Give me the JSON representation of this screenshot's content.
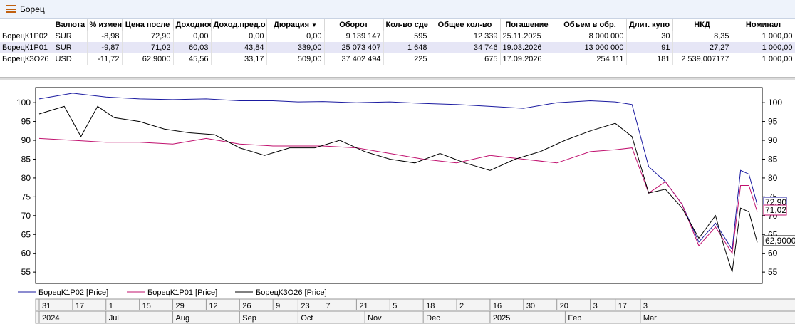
{
  "window": {
    "title": "Борец"
  },
  "table": {
    "columns": [
      "",
      "Валюта",
      "% измен",
      "Цена после",
      "Доходнос",
      "Доход.пред.о",
      "Дюрация",
      "Оборот",
      "Кол-во сде",
      "Общее кол-во",
      "Погашение",
      "Объем в обр.",
      "Длит. купо",
      "НКД",
      "Номинал"
    ],
    "rows": [
      [
        "БорецК1Р02",
        "SUR",
        "-8,98",
        "72,90",
        "0,00",
        "0,00",
        "0,00",
        "9 139 147",
        "595",
        "12 339",
        "25.11.2025",
        "8 000 000",
        "30",
        "8,35",
        "1 000,00"
      ],
      [
        "БорецК1Р01",
        "SUR",
        "-9,87",
        "71,02",
        "60,03",
        "43,84",
        "339,00",
        "25 073 407",
        "1 648",
        "34 746",
        "19.03.2026",
        "13 000 000",
        "91",
        "27,27",
        "1 000,00"
      ],
      [
        "БорецКЗО26",
        "USD",
        "-11,72",
        "62,9000",
        "45,56",
        "33,17",
        "509,00",
        "37 402 494",
        "225",
        "675",
        "17.09.2026",
        "254 111",
        "181",
        "2 539,007177",
        "1 000,00"
      ]
    ]
  },
  "chart_data": {
    "type": "line",
    "ylim": [
      52,
      104
    ],
    "yticks": [
      "100",
      "95",
      "90",
      "85",
      "80",
      "75",
      "70",
      "65",
      "60",
      "55"
    ],
    "series": [
      {
        "name": "БорецК1Р02 [Price]",
        "color": "#1a1aa0",
        "last_label": "72,90",
        "x": [
          0,
          4,
          8,
          12,
          16,
          20,
          24,
          28,
          31,
          34,
          38,
          42,
          46,
          50,
          54,
          58,
          62,
          66,
          69,
          71,
          73,
          75,
          77,
          79,
          81,
          83,
          84,
          85,
          86
        ],
        "values": [
          101,
          102.5,
          101.5,
          101,
          100.8,
          101,
          100.5,
          100.5,
          100.2,
          100.3,
          100,
          100.2,
          99.8,
          99.5,
          99,
          98.5,
          100,
          100.5,
          100.2,
          99.5,
          83,
          79,
          73,
          63,
          68,
          61,
          82,
          81,
          72.9
        ]
      },
      {
        "name": "БорецК1Р01 [Price]",
        "color": "#c0106e",
        "last_label": "71,02",
        "x": [
          0,
          4,
          8,
          12,
          16,
          20,
          24,
          28,
          31,
          34,
          38,
          42,
          46,
          50,
          54,
          58,
          62,
          66,
          69,
          71,
          73,
          75,
          77,
          79,
          81,
          83,
          84,
          85,
          86
        ],
        "values": [
          90.5,
          90,
          89.5,
          89.5,
          89,
          90.5,
          89,
          88.5,
          88.5,
          88.5,
          88,
          86.5,
          85,
          84,
          86,
          85,
          84,
          87,
          87.5,
          88,
          76,
          79,
          73,
          62,
          67,
          60,
          78,
          78,
          71.02
        ]
      },
      {
        "name": "БорецКЗО26 [Price]",
        "color": "#000000",
        "last_label": "62,9000",
        "x": [
          0,
          3,
          5,
          7,
          9,
          12,
          15,
          18,
          21,
          24,
          27,
          30,
          33,
          36,
          39,
          42,
          45,
          48,
          51,
          54,
          57,
          60,
          63,
          66,
          69,
          71,
          73,
          75,
          77,
          79,
          81,
          82,
          83,
          84,
          85,
          86
        ],
        "values": [
          97,
          99,
          91,
          99,
          96,
          95,
          93,
          92,
          91.5,
          88,
          86,
          88,
          88,
          90,
          87,
          85,
          84,
          86.5,
          84,
          82,
          85,
          87,
          90,
          92.5,
          94.5,
          91,
          76,
          77,
          72,
          64,
          70,
          62,
          55,
          72,
          71,
          62.9
        ]
      }
    ],
    "x_ticks": {
      "days": [
        {
          "x": 0,
          "label": "31"
        },
        {
          "x": 4,
          "label": "17"
        },
        {
          "x": 8,
          "label": "1"
        },
        {
          "x": 12,
          "label": "15"
        },
        {
          "x": 16,
          "label": "29"
        },
        {
          "x": 20,
          "label": "12"
        },
        {
          "x": 24,
          "label": "26"
        },
        {
          "x": 28,
          "label": "9"
        },
        {
          "x": 31,
          "label": "23"
        },
        {
          "x": 34,
          "label": "7"
        },
        {
          "x": 38,
          "label": "21"
        },
        {
          "x": 42,
          "label": "5"
        },
        {
          "x": 46,
          "label": "18"
        },
        {
          "x": 50,
          "label": "2"
        },
        {
          "x": 54,
          "label": "16"
        },
        {
          "x": 58,
          "label": "30"
        },
        {
          "x": 62,
          "label": "20"
        },
        {
          "x": 66,
          "label": "3"
        },
        {
          "x": 69,
          "label": "17"
        },
        {
          "x": 72,
          "label": "3"
        }
      ],
      "periods": [
        {
          "x": 0,
          "label": "2024"
        },
        {
          "x": 8,
          "label": "Jul"
        },
        {
          "x": 16,
          "label": "Aug"
        },
        {
          "x": 24,
          "label": "Sep"
        },
        {
          "x": 31,
          "label": "Oct"
        },
        {
          "x": 39,
          "label": "Nov"
        },
        {
          "x": 46,
          "label": "Dec"
        },
        {
          "x": 54,
          "label": "2025"
        },
        {
          "x": 63,
          "label": "Feb"
        },
        {
          "x": 72,
          "label": "Mar"
        }
      ]
    }
  }
}
